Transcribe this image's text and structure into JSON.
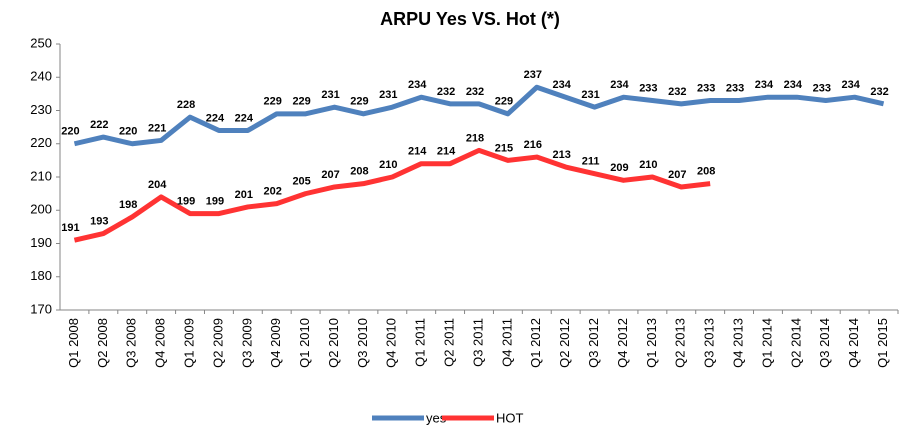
{
  "chart_data": {
    "type": "line",
    "title": "ARPU Yes VS. Hot (*)",
    "categories": [
      "Q1 2008",
      "Q2 2008",
      "Q3 2008",
      "Q4 2008",
      "Q1 2009",
      "Q2 2009",
      "Q3 2009",
      "Q4 2009",
      "Q1 2010",
      "Q2 2010",
      "Q3 2010",
      "Q4 2010",
      "Q1 2011",
      "Q2 2011",
      "Q3 2011",
      "Q4 2011",
      "Q1 2012",
      "Q2 2012",
      "Q3 2012",
      "Q4 2012",
      "Q1 2013",
      "Q2 2013",
      "Q3 2013",
      "Q4 2013",
      "Q1 2014",
      "Q2 2014",
      "Q3 2014",
      "Q4 2014",
      "Q1 2015"
    ],
    "series": [
      {
        "name": "yes",
        "color": "#4f81bd",
        "values": [
          220,
          222,
          220,
          221,
          228,
          224,
          224,
          229,
          229,
          231,
          229,
          231,
          234,
          232,
          232,
          229,
          237,
          234,
          231,
          234,
          233,
          232,
          233,
          233,
          234,
          234,
          233,
          234,
          232
        ]
      },
      {
        "name": "HOT",
        "color": "#ff3333",
        "values": [
          191,
          193,
          198,
          204,
          199,
          199,
          201,
          202,
          205,
          207,
          208,
          210,
          214,
          214,
          218,
          215,
          216,
          213,
          211,
          209,
          210,
          207,
          208,
          null,
          null,
          null,
          null,
          null,
          null
        ]
      }
    ],
    "ylim": [
      170,
      250
    ],
    "yticks": [
      170,
      180,
      190,
      200,
      210,
      220,
      230,
      240,
      250
    ],
    "legend": "bottom",
    "grid": false
  }
}
